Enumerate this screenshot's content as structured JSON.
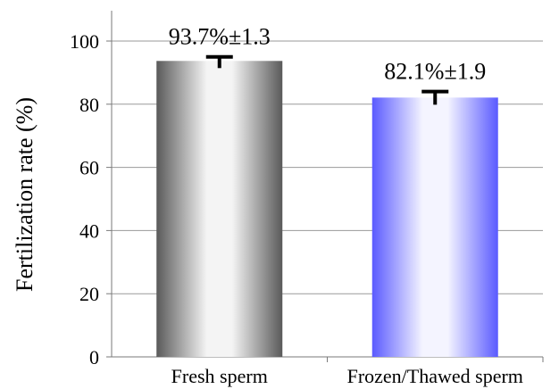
{
  "chart_data": {
    "type": "bar",
    "categories": [
      "Fresh sperm",
      "Frozen/Thawed sperm"
    ],
    "values": [
      93.7,
      82.1
    ],
    "errors": [
      1.3,
      1.9
    ],
    "data_labels": [
      "93.7%±1.3",
      "82.1%±1.9"
    ],
    "bar_colors": [
      "#6e6e6e",
      "#6666ff"
    ],
    "title": "",
    "xlabel": "",
    "ylabel": "Fertilization rate (%)",
    "ylim": [
      0,
      100
    ],
    "yticks": [
      "0",
      "20",
      "40",
      "60",
      "80",
      "100"
    ],
    "grid": true,
    "legend": "none"
  }
}
